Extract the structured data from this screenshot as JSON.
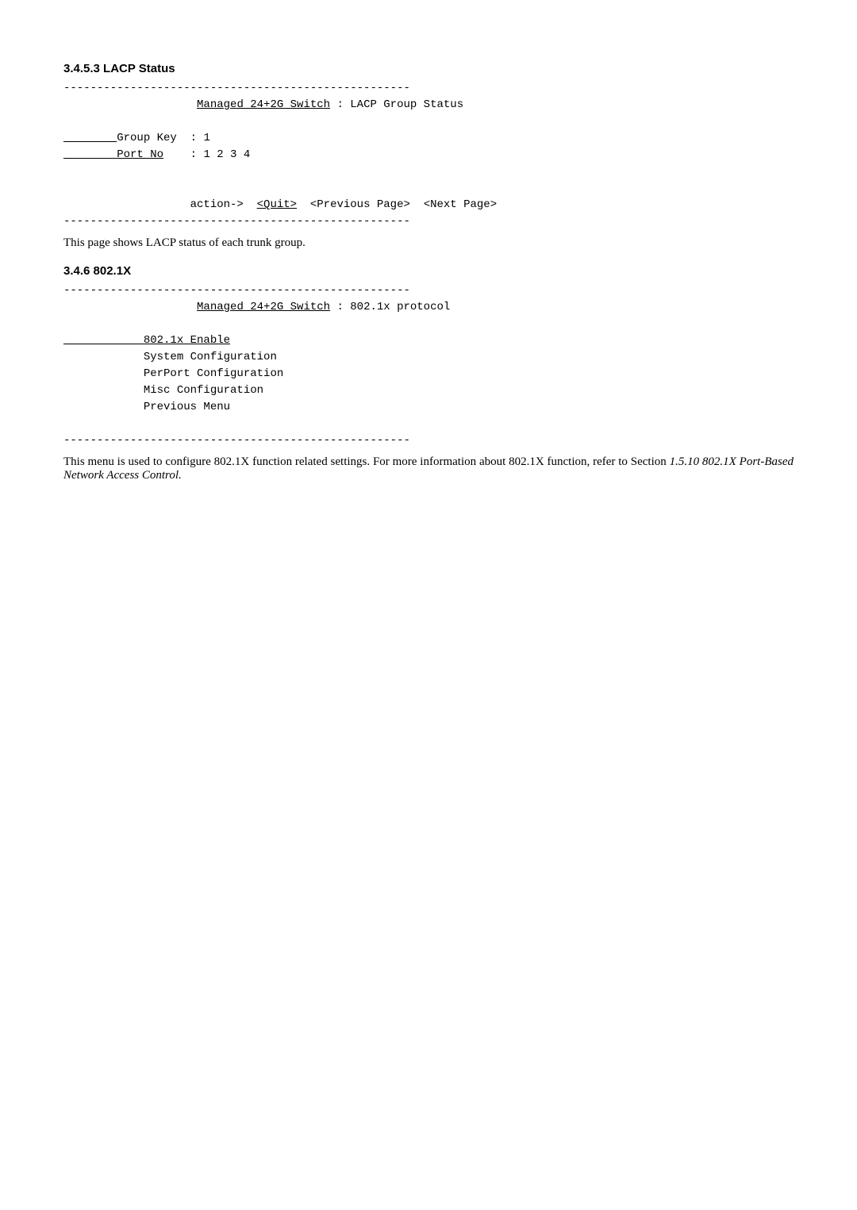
{
  "section1": {
    "heading": "3.4.5.3 LACP Status",
    "divider": "----------------------------------------------------",
    "title_left": "Managed 24+2G Switch",
    "title_right": " : LACP Group Status",
    "group_key_label": "Group Key  : ",
    "group_key_value": "1",
    "port_no_label": "Port_No",
    "port_no_value": "    : 1 2 3 4",
    "action_prefix": "                   action->  ",
    "action_quit": "<Quit>",
    "action_rest": "  <Previous Page>  <Next Page>",
    "body": "This page shows LACP status of each trunk group."
  },
  "section2": {
    "heading": "3.4.6 802.1X",
    "divider": "----------------------------------------------------",
    "title_left": "Managed 24+2G Switch",
    "title_right": " : 802.1x protocol",
    "menu_pad": "           ",
    "menu_item_hl": " 802.1x Enable",
    "menu_items": [
      "            System Configuration",
      "            PerPort Configuration",
      "            Misc Configuration",
      "            Previous Menu"
    ],
    "body_part1": "This menu is used to configure 802.1X function related settings. For more information about 802.1X function, refer to Section ",
    "body_italic": "1.5.10 802.1X Port-Based Network Access Control."
  }
}
